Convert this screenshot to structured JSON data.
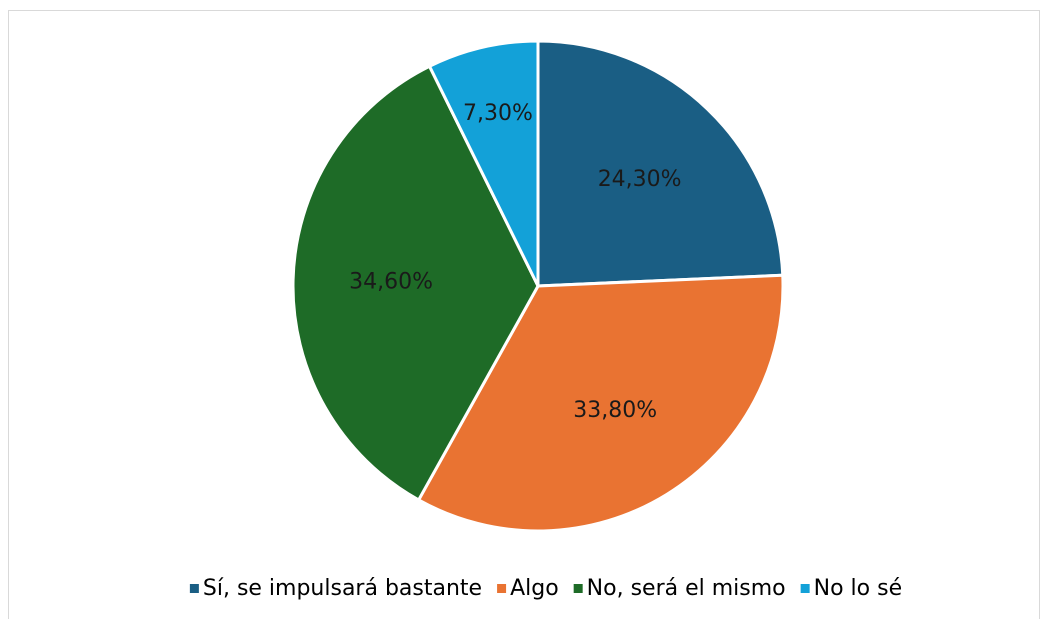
{
  "chart_data": {
    "type": "pie",
    "categories": [
      "Sí, se impulsará bastante",
      "Algo",
      "No, será el mismo",
      "No lo sé"
    ],
    "values": [
      24.3,
      33.8,
      34.6,
      7.3
    ],
    "value_labels": [
      "24,30%",
      "33,80%",
      "34,60%",
      "7,30%"
    ],
    "colors": [
      "#1a5e84",
      "#e97332",
      "#1e6b27",
      "#13a1d8"
    ],
    "legend": "bottom"
  }
}
